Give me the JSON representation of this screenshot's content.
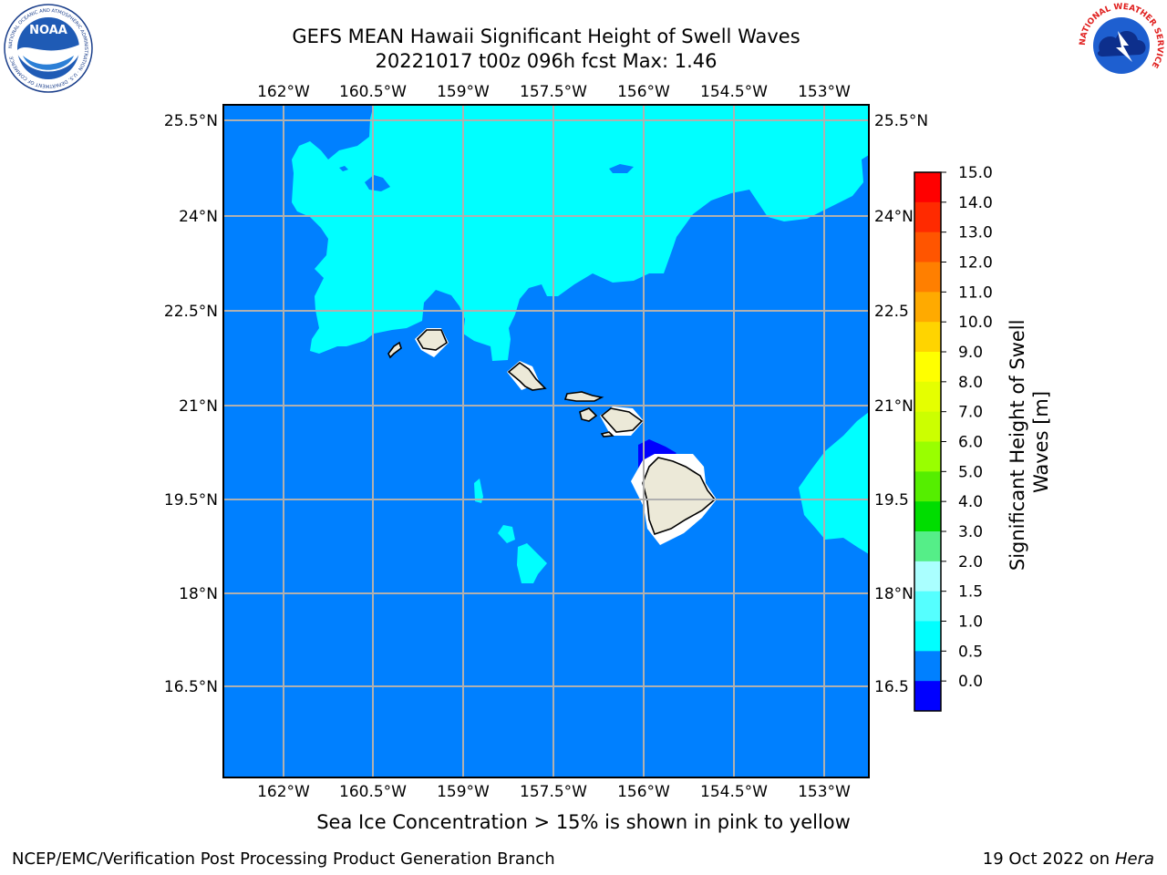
{
  "header": {
    "title_line1": "GEFS MEAN Hawaii Significant Height of Swell Waves",
    "title_line2": "20221017 t00z 096h fcst   Max: 1.46"
  },
  "map": {
    "lon_labels": [
      "162°W",
      "160.5°W",
      "159°W",
      "157.5°W",
      "156°W",
      "154.5°W",
      "153°W"
    ],
    "lat_labels": [
      "25.5°N",
      "24°N",
      "22.5°N",
      "21°N",
      "19.5°N",
      "18°N",
      "16.5°N"
    ],
    "lat_labels_right": [
      "25.5°N",
      "24°N",
      "22.5",
      "21°N",
      "19.5",
      "18°N",
      "16.5"
    ],
    "colors": {
      "ocean_base": "#0080ff",
      "swell_1_to_1_5": "#00ffff",
      "swell_0_to_0_5": "#0000ff",
      "land": "#ece9d8",
      "grid": "#b0b0b0"
    }
  },
  "colorbar": {
    "label": "Significant Height of Swell Waves [m]",
    "ticks": [
      "15.0",
      "14.0",
      "13.0",
      "12.0",
      "11.0",
      "10.0",
      "9.0",
      "8.0",
      "7.0",
      "6.0",
      "5.0",
      "4.0",
      "3.0",
      "2.0",
      "1.5",
      "1.0",
      "0.5",
      "0.0"
    ],
    "colors": [
      "#ff0000",
      "#ff2a00",
      "#ff5500",
      "#ff7f00",
      "#ffaa00",
      "#ffd400",
      "#ffff00",
      "#e5ff00",
      "#ccff00",
      "#99ff00",
      "#55ee00",
      "#00dd00",
      "#55ee88",
      "#aaffff",
      "#55ffff",
      "#00ffff",
      "#0080ff",
      "#0000ff"
    ]
  },
  "caption": "Sea Ice Concentration > 15% is shown in pink to yellow",
  "footer": {
    "left": "NCEP/EMC/Verification Post Processing Product Generation Branch",
    "right_date": "19 Oct 2022 on ",
    "right_host": "Hera"
  },
  "logos": {
    "noaa_text": "NOAA",
    "noaa_ring_text": "NATIONAL OCEANIC AND ATMOSPHERIC ADMINISTRATION · U.S. DEPARTMENT OF COMMERCE",
    "nws_ring_text": "NATIONAL WEATHER SERVICE"
  }
}
